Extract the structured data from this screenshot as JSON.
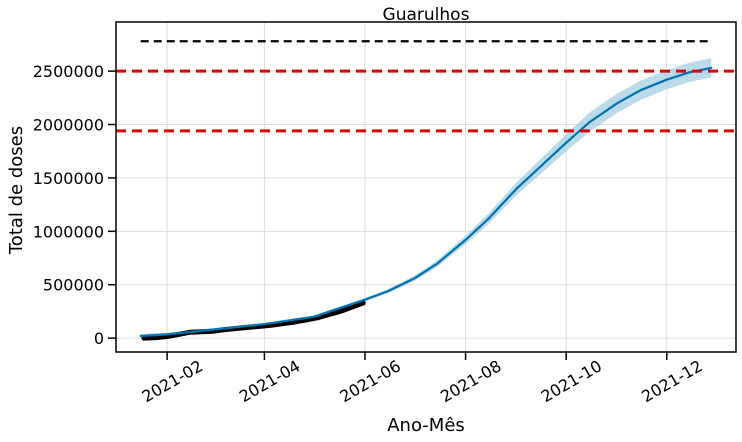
{
  "chart_data": {
    "type": "line",
    "title": "Guarulhos",
    "xlabel": "Ano-Mês",
    "ylabel": "Total de doses",
    "x_ticks": [
      "2021-02",
      "2021-04",
      "2021-06",
      "2021-08",
      "2021-10",
      "2021-12"
    ],
    "y_ticks": [
      0,
      500000,
      1000000,
      1500000,
      2000000,
      2500000
    ],
    "y_tick_labels": [
      "0",
      "500000",
      "1000000",
      "1500000",
      "2000000",
      "2500000"
    ],
    "xlim": [
      "2021-01-01",
      "2022-01-12"
    ],
    "ylim": [
      -130000,
      2960000
    ],
    "grid": true,
    "series": [
      {
        "role": "observed",
        "color": "#000000",
        "x": [
          "2021-01-18",
          "2021-01-25",
          "2021-02-01",
          "2021-02-08",
          "2021-02-15",
          "2021-02-22",
          "2021-03-01",
          "2021-03-08",
          "2021-03-15",
          "2021-03-22",
          "2021-03-29",
          "2021-04-05",
          "2021-04-12",
          "2021-04-19",
          "2021-04-26",
          "2021-05-03",
          "2021-05-10",
          "2021-05-17",
          "2021-05-24",
          "2021-05-31"
        ],
        "y": [
          0,
          5000,
          15000,
          35000,
          55000,
          60000,
          65000,
          80000,
          90000,
          100000,
          110000,
          120000,
          135000,
          150000,
          170000,
          190000,
          220000,
          250000,
          290000,
          330000
        ]
      },
      {
        "role": "forecast",
        "color": "#0072B2",
        "band_color": "#9ecae1",
        "x": [
          "2021-01-16",
          "2021-02-01",
          "2021-03-01",
          "2021-04-01",
          "2021-05-01",
          "2021-06-01",
          "2021-06-15",
          "2021-07-01",
          "2021-07-15",
          "2021-08-01",
          "2021-08-15",
          "2021-09-01",
          "2021-09-15",
          "2021-10-01",
          "2021-10-15",
          "2021-11-01",
          "2021-11-15",
          "2021-12-01",
          "2021-12-15",
          "2021-12-28"
        ],
        "y": [
          20000,
          35000,
          80000,
          130000,
          200000,
          360000,
          440000,
          560000,
          700000,
          920000,
          1120000,
          1400000,
          1600000,
          1830000,
          2020000,
          2200000,
          2320000,
          2420000,
          2490000,
          2530000
        ],
        "lower": [
          0,
          20000,
          65000,
          115000,
          185000,
          345000,
          420000,
          535000,
          670000,
          880000,
          1070000,
          1340000,
          1530000,
          1750000,
          1930000,
          2110000,
          2230000,
          2330000,
          2400000,
          2440000
        ],
        "upper": [
          40000,
          50000,
          95000,
          145000,
          215000,
          375000,
          460000,
          585000,
          730000,
          960000,
          1170000,
          1460000,
          1670000,
          1910000,
          2110000,
          2290000,
          2410000,
          2510000,
          2580000,
          2620000
        ]
      }
    ],
    "reference_lines": [
      {
        "y": 2500000,
        "color": "#e00000",
        "style": "dashed",
        "span": "full"
      },
      {
        "y": 1940000,
        "color": "#e00000",
        "style": "dashed",
        "span": "full"
      },
      {
        "y": 2780000,
        "color": "#000000",
        "style": "dashed",
        "x_start": "2021-01-16",
        "x_end": "2021-12-28"
      }
    ]
  }
}
